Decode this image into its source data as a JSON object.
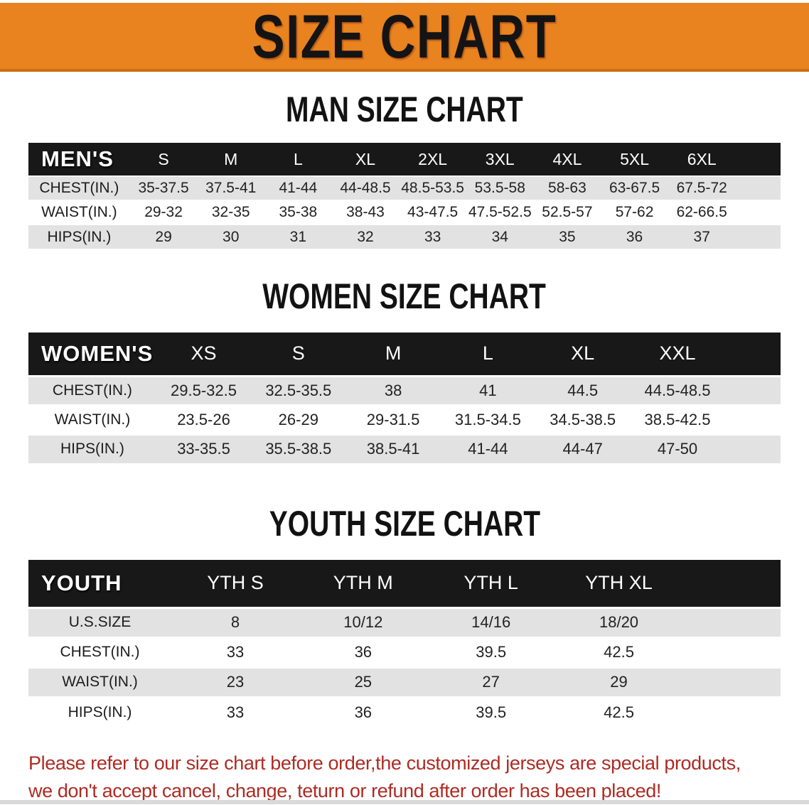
{
  "banner": {
    "title": "SIZE CHART"
  },
  "sections": {
    "men": {
      "heading": "MAN SIZE CHART",
      "table": {
        "header_label": "MEN'S",
        "columns": [
          "S",
          "M",
          "L",
          "XL",
          "2XL",
          "3XL",
          "4XL",
          "5XL",
          "6XL"
        ],
        "rows": [
          {
            "label": "CHEST(IN.)",
            "values": [
              "35-37.5",
              "37.5-41",
              "41-44",
              "44-48.5",
              "48.5-53.5",
              "53.5-58",
              "58-63",
              "63-67.5",
              "67.5-72"
            ]
          },
          {
            "label": "WAIST(IN.)",
            "values": [
              "29-32",
              "32-35",
              "35-38",
              "38-43",
              "43-47.5",
              "47.5-52.5",
              "52.5-57",
              "57-62",
              "62-66.5"
            ]
          },
          {
            "label": "HIPS(IN.)",
            "values": [
              "29",
              "30",
              "31",
              "32",
              "33",
              "34",
              "35",
              "36",
              "37"
            ]
          }
        ],
        "first_row_shade": "gray"
      }
    },
    "women": {
      "heading": "WOMEN SIZE CHART",
      "table": {
        "header_label": "WOMEN'S",
        "columns": [
          "XS",
          "S",
          "M",
          "L",
          "XL",
          "XXL"
        ],
        "rows": [
          {
            "label": "CHEST(IN.)",
            "values": [
              "29.5-32.5",
              "32.5-35.5",
              "38",
              "41",
              "44.5",
              "44.5-48.5"
            ]
          },
          {
            "label": "WAIST(IN.)",
            "values": [
              "23.5-26",
              "26-29",
              "29-31.5",
              "31.5-34.5",
              "34.5-38.5",
              "38.5-42.5"
            ]
          },
          {
            "label": "HIPS(IN.)",
            "values": [
              "33-35.5",
              "35.5-38.5",
              "38.5-41",
              "41-44",
              "44-47",
              "47-50"
            ]
          }
        ],
        "first_row_shade": "gray"
      }
    },
    "youth": {
      "heading": "YOUTH SIZE CHART",
      "table": {
        "header_label": "YOUTH",
        "columns": [
          "YTH S",
          "YTH M",
          "YTH L",
          "YTH XL"
        ],
        "rows": [
          {
            "label": "U.S.SIZE",
            "values": [
              "8",
              "10/12",
              "14/16",
              "18/20"
            ]
          },
          {
            "label": "CHEST(IN.)",
            "values": [
              "33",
              "36",
              "39.5",
              "42.5"
            ]
          },
          {
            "label": "WAIST(IN.)",
            "values": [
              "23",
              "25",
              "27",
              "29"
            ]
          },
          {
            "label": "HIPS(IN.)",
            "values": [
              "33",
              "36",
              "39.5",
              "42.5"
            ]
          }
        ],
        "first_row_shade": "gray"
      }
    }
  },
  "disclaimer": {
    "line1": "Please refer to our size chart before order,the customized jerseys are special products,",
    "line2": "we don't accept cancel, change, teturn or refund after order has been placed!"
  },
  "colors": {
    "banner_orange": "#E8831F",
    "banner_border": "#C96F12",
    "header_black": "#181818",
    "row_gray": "#E2E2E2",
    "disclaimer_red": "#AE2B23"
  }
}
